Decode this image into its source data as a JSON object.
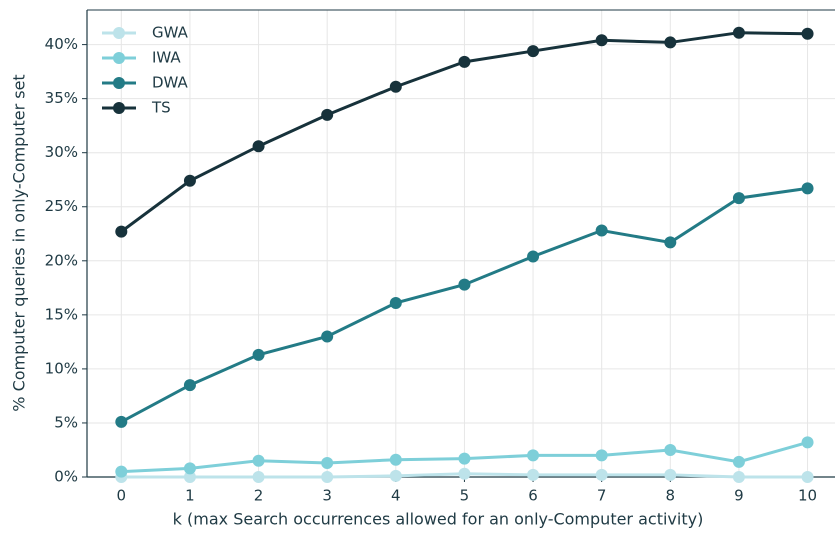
{
  "chart_data": {
    "type": "line",
    "xlabel": "k (max Search occurrences allowed for an only-Computer activity)",
    "ylabel": "% Computer queries in only-Computer set",
    "x": [
      0,
      1,
      2,
      3,
      4,
      5,
      6,
      7,
      8,
      9,
      10
    ],
    "xlim": [
      -0.5,
      10.4
    ],
    "xticks": [
      0,
      1,
      2,
      3,
      4,
      5,
      6,
      7,
      8,
      9,
      10
    ],
    "ylim": [
      0,
      43.2
    ],
    "yticks": [
      {
        "value": 0,
        "label": "0%"
      },
      {
        "value": 5,
        "label": "5%"
      },
      {
        "value": 10,
        "label": "10%"
      },
      {
        "value": 15,
        "label": "15%"
      },
      {
        "value": 20,
        "label": "20%"
      },
      {
        "value": 25,
        "label": "25%"
      },
      {
        "value": 30,
        "label": "30%"
      },
      {
        "value": 35,
        "label": "35%"
      },
      {
        "value": 40,
        "label": "40%"
      }
    ],
    "grid": true,
    "legend": "upper-left",
    "series": [
      {
        "name": "GWA",
        "color": "#bde3ea",
        "values": [
          0,
          0,
          0,
          0,
          0.1,
          0.3,
          0.2,
          0.2,
          0.2,
          0,
          0
        ]
      },
      {
        "name": "IWA",
        "color": "#7ecfd9",
        "values": [
          0.5,
          0.8,
          1.5,
          1.3,
          1.6,
          1.7,
          2.0,
          2.0,
          2.5,
          1.4,
          3.2
        ]
      },
      {
        "name": "DWA",
        "color": "#237b86",
        "values": [
          5.1,
          8.5,
          11.3,
          13.0,
          16.1,
          17.8,
          20.4,
          22.8,
          21.7,
          25.8,
          26.7
        ]
      },
      {
        "name": "TS",
        "color": "#17323b",
        "values": [
          22.7,
          27.4,
          30.6,
          33.5,
          36.1,
          38.4,
          39.4,
          40.4,
          40.2,
          41.1,
          41.0
        ]
      }
    ]
  }
}
